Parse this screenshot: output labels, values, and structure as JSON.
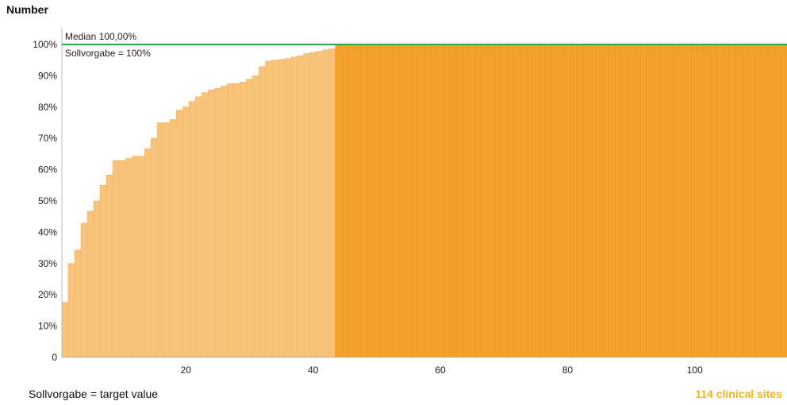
{
  "title": "Number",
  "footer": {
    "note": "Sollvorgabe = target value",
    "count_label": "114 clinical sites"
  },
  "annotations": {
    "median": "Median 100,00%",
    "target": "Sollvorgabe = 100%"
  },
  "colors": {
    "below_target": "#f7c37a",
    "at_target": "#f2a12a",
    "target_line": "#28a745",
    "count_label": "#f5b21e"
  },
  "chart_data": {
    "type": "bar",
    "n_sites": 114,
    "x": {
      "range": [
        0.5,
        114.5
      ],
      "ticks": [
        20,
        40,
        60,
        80,
        100
      ],
      "tick_labels": [
        "20",
        "40",
        "60",
        "80",
        "100"
      ]
    },
    "y": {
      "range": [
        0,
        100
      ],
      "ticks": [
        0,
        10,
        20,
        30,
        40,
        50,
        60,
        70,
        80,
        90,
        100
      ],
      "tick_labels": [
        "0",
        "10%",
        "20%",
        "30%",
        "40%",
        "50%",
        "60%",
        "70%",
        "80%",
        "90%",
        "100%"
      ]
    },
    "median": 100,
    "target": 100,
    "values": [
      17.6,
      30.0,
      34.3,
      42.9,
      46.7,
      50.0,
      55.0,
      58.3,
      62.9,
      62.9,
      63.6,
      64.3,
      64.3,
      66.7,
      70.0,
      75.0,
      75.0,
      76.0,
      79.0,
      80.0,
      81.8,
      83.3,
      84.6,
      85.5,
      86.0,
      86.7,
      87.5,
      87.5,
      88.0,
      88.9,
      90.0,
      92.9,
      94.7,
      95.0,
      95.2,
      95.5,
      96.0,
      96.4,
      97.1,
      97.5,
      97.8,
      98.3,
      98.6,
      100,
      100,
      100,
      100,
      100,
      100,
      100,
      100,
      100,
      100,
      100,
      100,
      100,
      100,
      100,
      100,
      100,
      100,
      100,
      100,
      100,
      100,
      100,
      100,
      100,
      100,
      100,
      100,
      100,
      100,
      100,
      100,
      100,
      100,
      100,
      100,
      100,
      100,
      100,
      100,
      100,
      100,
      100,
      100,
      100,
      100,
      100,
      100,
      100,
      100,
      100,
      100,
      100,
      100,
      100,
      100,
      100,
      100,
      100,
      100,
      100,
      100,
      100,
      100,
      100,
      100,
      100,
      100,
      100,
      100,
      100
    ]
  }
}
